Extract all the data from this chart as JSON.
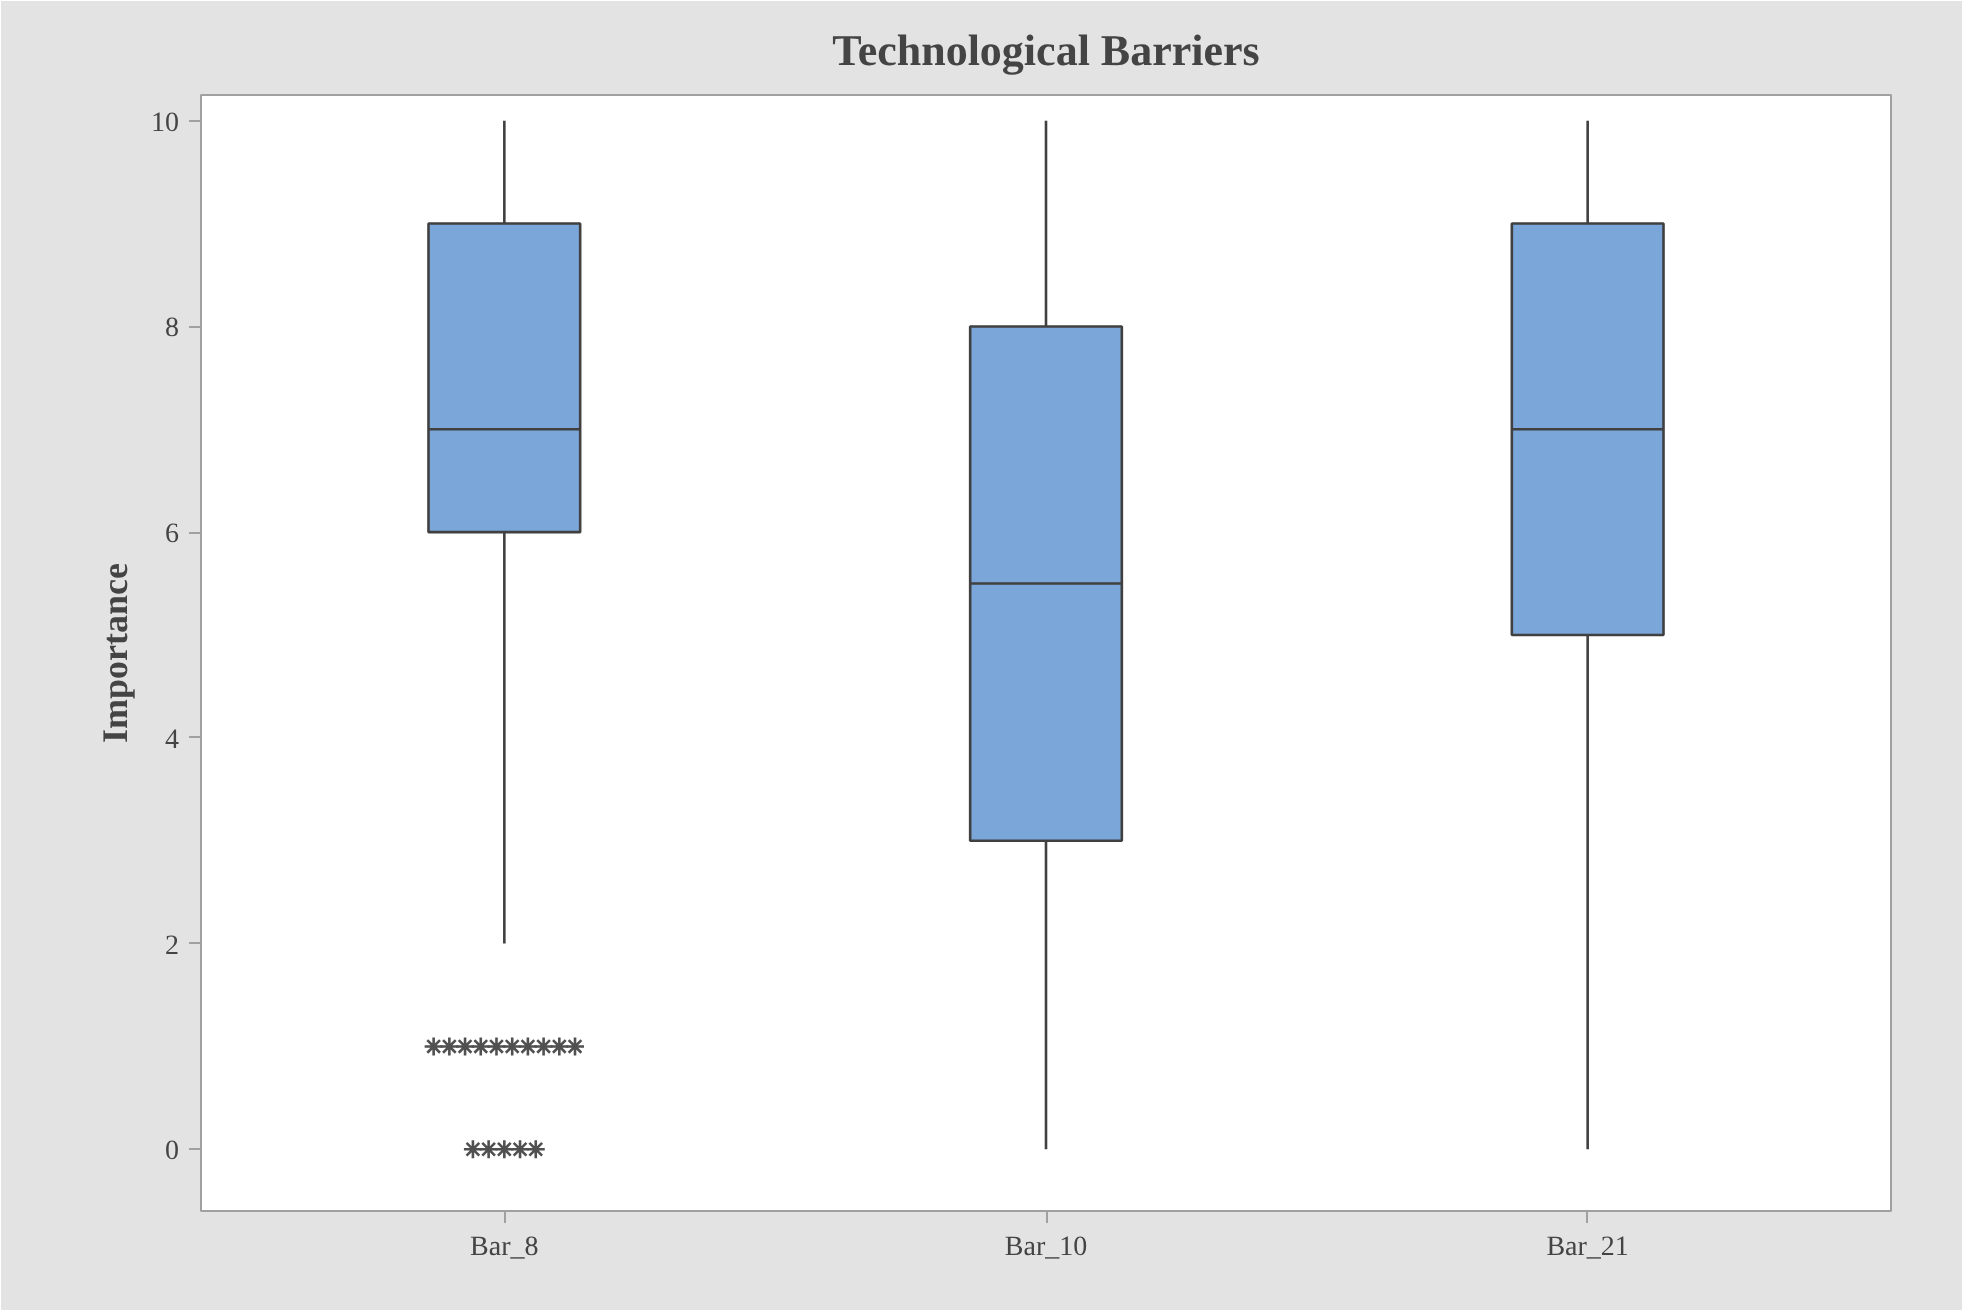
{
  "chart_data": {
    "type": "box",
    "title": "Technological Barriers",
    "ylabel": "Importance",
    "categories": [
      "Bar_8",
      "Bar_10",
      "Bar_21"
    ],
    "series": [
      {
        "color": "#7ba6d9",
        "boxes": [
          {
            "low": 2,
            "q1": 6,
            "median": 7,
            "q3": 9,
            "high": 10,
            "outliers": [
              1,
              1,
              1,
              1,
              1,
              1,
              1,
              1,
              1,
              1,
              0,
              0,
              0,
              0,
              0
            ]
          },
          {
            "low": 0,
            "q1": 3,
            "median": 5.5,
            "q3": 8,
            "high": 10
          },
          {
            "low": 0,
            "q1": 5,
            "median": 7,
            "q3": 9,
            "high": 10
          }
        ]
      }
    ],
    "ylim": [
      -0.6,
      10.25
    ],
    "yticks": [
      0,
      2,
      4,
      6,
      8,
      10
    ],
    "grid": false,
    "marker": "star"
  }
}
